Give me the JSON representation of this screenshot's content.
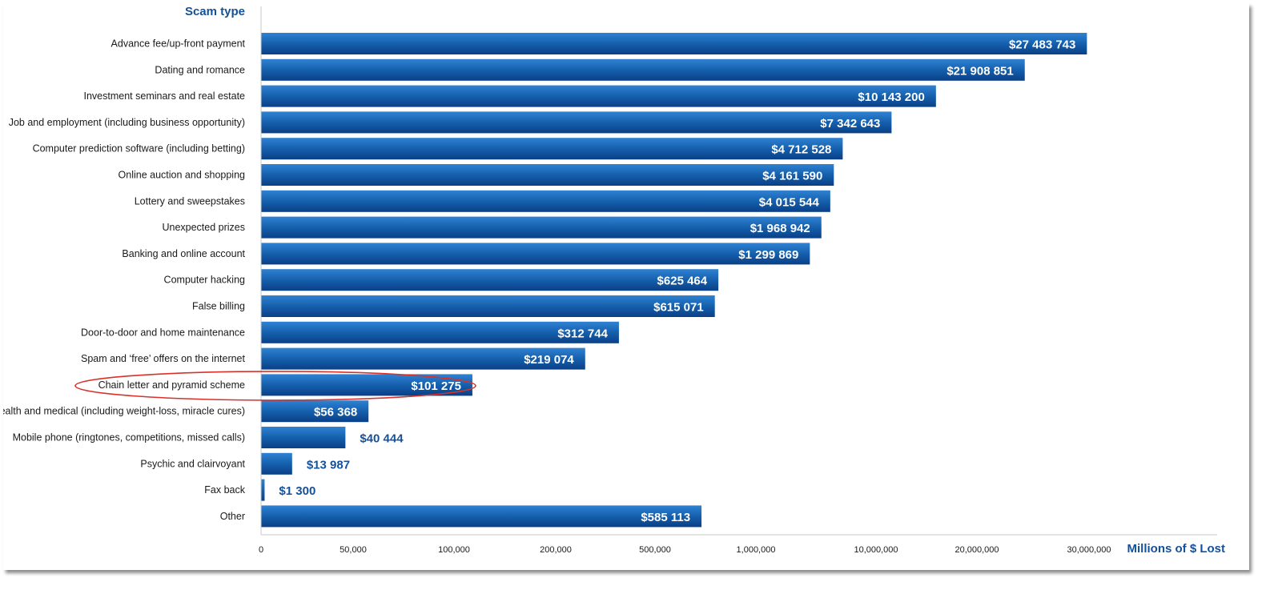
{
  "chart_data": {
    "type": "bar",
    "orientation": "horizontal",
    "title": "",
    "category_axis_title": "Scam type",
    "value_axis_title": "Millions of $ Lost",
    "x_ticks": [
      "0",
      "50,000",
      "100,000",
      "200,000",
      "500,000",
      "1,000,000",
      "10,000,000",
      "20,000,000",
      "30,000,000"
    ],
    "x_tick_values": [
      0,
      50000,
      100000,
      200000,
      500000,
      1000000,
      10000000,
      20000000,
      30000000
    ],
    "bar_color": "#1560ad",
    "label_color_outside": "#14519b",
    "highlight_color": "#d9312b",
    "highlight_category": "Chain letter and pyramid scheme",
    "categories": [
      "Advance fee/up-front payment",
      "Dating and romance",
      "Investment seminars and real estate",
      "Job and employment (including business opportunity)",
      "Computer prediction software (including betting)",
      "Online auction and shopping",
      "Lottery and sweepstakes",
      "Unexpected prizes",
      "Banking and online account",
      "Computer hacking",
      "False billing",
      "Door-to-door and home maintenance",
      "Spam and ‘free’ offers on the internet",
      "Chain letter and pyramid scheme",
      "Health and medical (including weight-loss, miracle cures)",
      "Mobile phone (ringtones, competitions, missed calls)",
      "Psychic and clairvoyant",
      "Fax back",
      "Other"
    ],
    "values": [
      27483743,
      21908851,
      10143200,
      7342643,
      4712528,
      4161590,
      4015544,
      1968942,
      1299869,
      625464,
      615071,
      312744,
      219074,
      101275,
      56368,
      40444,
      13987,
      1300,
      585113
    ],
    "value_labels": [
      "$27 483 743",
      "$21 908 851",
      "$10 143 200",
      "$7 342 643",
      "$4 712 528",
      "$4 161 590",
      "$4 015 544",
      "$1 968 942",
      "$1 299 869",
      "$625 464",
      "$615 071",
      "$312 744",
      "$219 074",
      "$101 275",
      "$56 368",
      "$40 444",
      "$13 987",
      "$1 300",
      "$585 113"
    ],
    "grid": false,
    "legend": "none"
  }
}
